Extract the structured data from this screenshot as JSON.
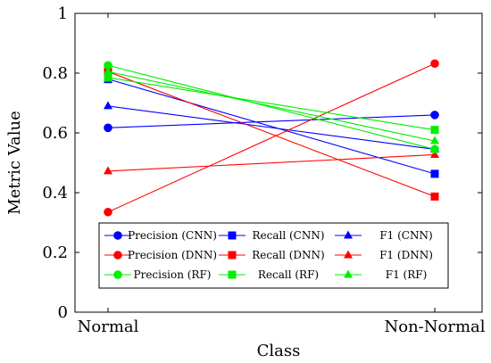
{
  "chart_data": {
    "type": "line",
    "categories": [
      "Normal",
      "Non-Normal"
    ],
    "xlabel": "Class",
    "ylabel": "Metric Value",
    "ylim": [
      0,
      1
    ],
    "yticks": [
      "0",
      "0.2",
      "0.4",
      "0.6",
      "0.8",
      "1"
    ],
    "grid": false,
    "legend_position": "bottom-center",
    "series": [
      {
        "name": "Precision (CNN)",
        "color": "#0000ff",
        "marker": "circle",
        "values": [
          0.617,
          0.66
        ]
      },
      {
        "name": "Recall (CNN)",
        "color": "#0000ff",
        "marker": "square",
        "values": [
          0.78,
          0.463
        ]
      },
      {
        "name": "F1 (CNN)",
        "color": "#0000ff",
        "marker": "triangle",
        "values": [
          0.69,
          0.545
        ]
      },
      {
        "name": "Precision (DNN)",
        "color": "#ff0000",
        "marker": "circle",
        "values": [
          0.335,
          0.832
        ]
      },
      {
        "name": "Recall (DNN)",
        "color": "#ff0000",
        "marker": "square",
        "values": [
          0.805,
          0.387
        ]
      },
      {
        "name": "F1 (DNN)",
        "color": "#ff0000",
        "marker": "triangle",
        "values": [
          0.472,
          0.527
        ]
      },
      {
        "name": "Precision (RF)",
        "color": "#00ee00",
        "marker": "circle",
        "values": [
          0.826,
          0.545
        ]
      },
      {
        "name": "Recall (RF)",
        "color": "#00ee00",
        "marker": "square",
        "values": [
          0.785,
          0.61
        ]
      },
      {
        "name": "F1 (RF)",
        "color": "#00ee00",
        "marker": "triangle",
        "values": [
          0.805,
          0.573
        ]
      }
    ]
  }
}
